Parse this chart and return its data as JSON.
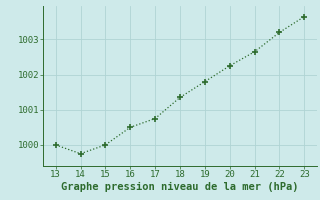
{
  "x": [
    13,
    14,
    15,
    16,
    17,
    18,
    19,
    20,
    21,
    22,
    23
  ],
  "y": [
    1000.0,
    999.75,
    1000.0,
    1000.5,
    1000.75,
    1001.35,
    1001.8,
    1002.25,
    1002.65,
    1003.2,
    1003.65
  ],
  "xlim": [
    12.5,
    23.5
  ],
  "ylim": [
    999.4,
    1003.95
  ],
  "xticks": [
    13,
    14,
    15,
    16,
    17,
    18,
    19,
    20,
    21,
    22,
    23
  ],
  "yticks": [
    1000,
    1001,
    1002,
    1003
  ],
  "xlabel": "Graphe pression niveau de la mer (hPa)",
  "line_color": "#2d6b2d",
  "marker_color": "#2d6b2d",
  "bg_color": "#ceeaea",
  "grid_color": "#b0d4d4",
  "axis_color": "#2d6b2d",
  "tick_label_color": "#2d6b2d",
  "xlabel_color": "#2d6b2d",
  "tick_fontsize": 6.5,
  "xlabel_fontsize": 7.5
}
